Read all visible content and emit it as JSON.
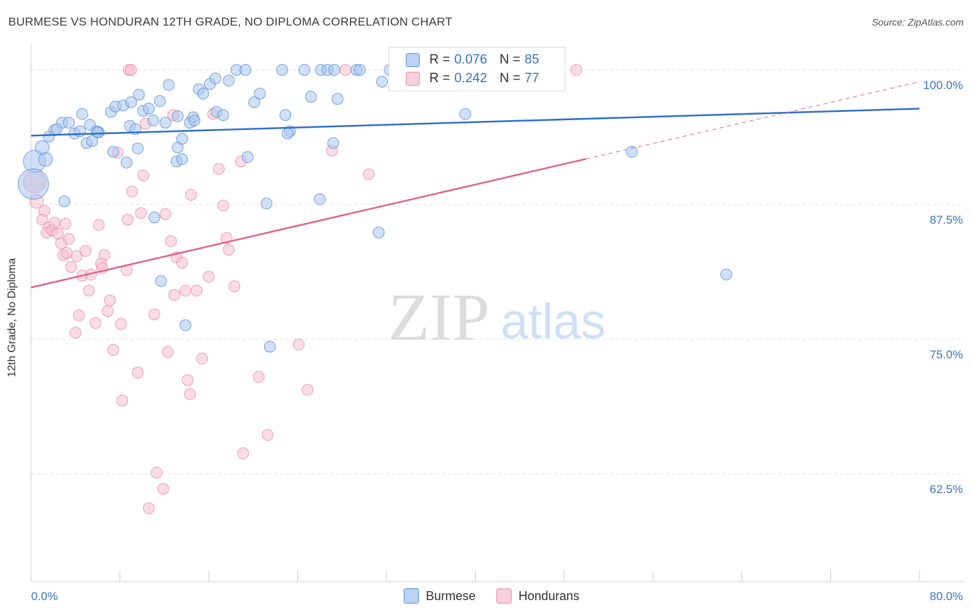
{
  "header": {
    "title": "BURMESE VS HONDURAN 12TH GRADE, NO DIPLOMA CORRELATION CHART",
    "source": "Source: ZipAtlas.com"
  },
  "watermark": {
    "zip": "ZIP",
    "atlas": "atlas"
  },
  "legend": {
    "burmese": {
      "r_label": "R =",
      "r_value": "0.076",
      "n_label": "N =",
      "n_value": "85"
    },
    "hondurans": {
      "r_label": "R =",
      "r_value": "0.242",
      "n_label": "N =",
      "n_value": "77"
    }
  },
  "colors": {
    "burmese_fill": "#a9c6ef",
    "burmese_stroke": "#5b8fd6",
    "burmese_line": "#2f6fcc",
    "hondurans_fill": "#f6bfd0",
    "hondurans_stroke": "#e98aa8",
    "hondurans_line": "#e0648f",
    "axis_text": "#3a74c4",
    "grid": "#e2e2e2"
  },
  "chart_data": {
    "type": "scatter",
    "title": "BURMESE VS HONDURAN 12TH GRADE, NO DIPLOMA CORRELATION CHART",
    "ylabel": "12th Grade, No Diploma",
    "xlabel": "",
    "xlim": [
      0,
      80
    ],
    "ylim": [
      52.5,
      102
    ],
    "x_tick_labels": [
      "0.0%",
      "80.0%"
    ],
    "y_ticks": [
      62.5,
      75.0,
      87.5,
      100.0
    ],
    "y_tick_labels": [
      "62.5%",
      "75.0%",
      "87.5%",
      "100.0%"
    ],
    "grid": true,
    "legend_position": "top-center",
    "series": [
      {
        "name": "Burmese",
        "r": 0.076,
        "n": 85,
        "trend": {
          "x": [
            0,
            80
          ],
          "y": [
            93.9,
            96.4
          ],
          "dashed_from": null
        },
        "points": [
          [
            0.3,
            91.5,
            16
          ],
          [
            0.2,
            89.4,
            22
          ],
          [
            1.3,
            91.7,
            10
          ],
          [
            1.0,
            92.8,
            10
          ],
          [
            1.6,
            93.8,
            8
          ],
          [
            2.1,
            94.4,
            8
          ],
          [
            2.8,
            95.1,
            8
          ],
          [
            3.4,
            95.1,
            8
          ],
          [
            4.6,
            95.9,
            8
          ],
          [
            2.3,
            94.5,
            8
          ],
          [
            3.9,
            94.1,
            8
          ],
          [
            4.4,
            94.3,
            8
          ],
          [
            5.3,
            94.9,
            8
          ],
          [
            6.1,
            94.2,
            8
          ],
          [
            5.0,
            93.2,
            8
          ],
          [
            5.5,
            93.4,
            8
          ],
          [
            7.2,
            96.1,
            8
          ],
          [
            7.6,
            96.6,
            8
          ],
          [
            8.3,
            96.7,
            8
          ],
          [
            8.9,
            94.8,
            8
          ],
          [
            9.0,
            97.0,
            8
          ],
          [
            9.6,
            92.7,
            8
          ],
          [
            10.1,
            96.2,
            8
          ],
          [
            10.6,
            96.4,
            8
          ],
          [
            11.0,
            95.3,
            8
          ],
          [
            11.6,
            97.1,
            8
          ],
          [
            12.1,
            95.1,
            8
          ],
          [
            12.4,
            98.6,
            8
          ],
          [
            13.2,
            92.8,
            8
          ],
          [
            13.6,
            93.6,
            8
          ],
          [
            14.3,
            95.1,
            8
          ],
          [
            14.6,
            95.6,
            8
          ],
          [
            15.1,
            98.2,
            8
          ],
          [
            15.5,
            97.8,
            8
          ],
          [
            16.1,
            98.7,
            8
          ],
          [
            16.7,
            96.1,
            8
          ],
          [
            17.3,
            95.8,
            8
          ],
          [
            17.8,
            99.0,
            8
          ],
          [
            18.5,
            100.0,
            8
          ],
          [
            19.3,
            100.0,
            8
          ],
          [
            20.1,
            97.0,
            8
          ],
          [
            20.6,
            97.8,
            8
          ],
          [
            22.6,
            100.0,
            8
          ],
          [
            22.9,
            95.8,
            8
          ],
          [
            24.6,
            100.0,
            8
          ],
          [
            25.2,
            97.5,
            8
          ],
          [
            26.1,
            100.0,
            8
          ],
          [
            26.7,
            100.0,
            8
          ],
          [
            27.3,
            100.0,
            8
          ],
          [
            27.6,
            97.3,
            8
          ],
          [
            29.3,
            100.0,
            8
          ],
          [
            29.6,
            100.0,
            8
          ],
          [
            31.6,
            98.9,
            8
          ],
          [
            32.3,
            100.0,
            8
          ],
          [
            38.1,
            100.0,
            8
          ],
          [
            38.8,
            99.0,
            8
          ],
          [
            40.1,
            100.0,
            8
          ],
          [
            5.9,
            94.3,
            8
          ],
          [
            7.4,
            92.4,
            8
          ],
          [
            8.6,
            91.4,
            8
          ],
          [
            11.1,
            86.3,
            8
          ],
          [
            13.1,
            91.5,
            8
          ],
          [
            16.6,
            99.2,
            8
          ],
          [
            13.6,
            91.7,
            8
          ],
          [
            14.7,
            95.3,
            8
          ],
          [
            9.4,
            94.5,
            8
          ],
          [
            3.0,
            87.8,
            8
          ],
          [
            23.3,
            94.3,
            8
          ],
          [
            27.2,
            93.2,
            8
          ],
          [
            11.7,
            80.4,
            8
          ],
          [
            13.9,
            76.3,
            8
          ],
          [
            21.2,
            87.6,
            8
          ],
          [
            26.0,
            88.0,
            8
          ],
          [
            31.3,
            84.9,
            8
          ],
          [
            33.6,
            100.0,
            8
          ],
          [
            36.3,
            100.0,
            8
          ],
          [
            39.1,
            95.9,
            8
          ],
          [
            54.1,
            92.4,
            8
          ],
          [
            62.6,
            81.0,
            8
          ],
          [
            21.5,
            74.3,
            8
          ],
          [
            19.5,
            91.9,
            8
          ],
          [
            23.1,
            94.1,
            8
          ],
          [
            13.2,
            95.7,
            8
          ],
          [
            9.7,
            97.7,
            8
          ],
          [
            6.0,
            94.2,
            8
          ]
        ]
      },
      {
        "name": "Hondurans",
        "r": 0.242,
        "n": 77,
        "trend": {
          "x": [
            0,
            80
          ],
          "y": [
            79.8,
            98.9
          ],
          "dashed_from": 50
        },
        "points": [
          [
            0.3,
            89.6,
            16
          ],
          [
            0.5,
            87.8,
            10
          ],
          [
            1.2,
            86.9,
            8
          ],
          [
            1.0,
            86.1,
            8
          ],
          [
            1.6,
            85.4,
            8
          ],
          [
            1.4,
            84.9,
            8
          ],
          [
            1.9,
            85.1,
            8
          ],
          [
            2.4,
            84.8,
            8
          ],
          [
            2.7,
            83.9,
            8
          ],
          [
            3.1,
            85.7,
            8
          ],
          [
            3.4,
            84.3,
            8
          ],
          [
            2.9,
            82.8,
            8
          ],
          [
            3.6,
            81.7,
            8
          ],
          [
            4.1,
            82.7,
            8
          ],
          [
            4.6,
            80.9,
            8
          ],
          [
            4.9,
            83.2,
            8
          ],
          [
            5.2,
            79.5,
            8
          ],
          [
            5.8,
            76.5,
            8
          ],
          [
            4.3,
            77.2,
            8
          ],
          [
            6.1,
            85.6,
            8
          ],
          [
            6.6,
            82.8,
            8
          ],
          [
            6.9,
            77.6,
            8
          ],
          [
            7.1,
            78.6,
            8
          ],
          [
            7.4,
            74.0,
            8
          ],
          [
            7.8,
            92.3,
            8
          ],
          [
            8.1,
            76.4,
            8
          ],
          [
            8.6,
            81.4,
            8
          ],
          [
            8.7,
            86.1,
            8
          ],
          [
            9.1,
            88.7,
            8
          ],
          [
            9.6,
            71.9,
            8
          ],
          [
            9.9,
            86.7,
            8
          ],
          [
            10.1,
            90.2,
            8
          ],
          [
            10.3,
            95.0,
            8
          ],
          [
            10.6,
            59.3,
            8
          ],
          [
            11.1,
            77.3,
            8
          ],
          [
            11.3,
            62.6,
            8
          ],
          [
            11.9,
            61.1,
            8
          ],
          [
            12.1,
            86.6,
            8
          ],
          [
            12.3,
            73.8,
            8
          ],
          [
            12.6,
            84.1,
            8
          ],
          [
            12.9,
            79.1,
            8
          ],
          [
            13.1,
            82.6,
            8
          ],
          [
            13.6,
            82.1,
            8
          ],
          [
            13.9,
            79.5,
            8
          ],
          [
            14.1,
            71.2,
            8
          ],
          [
            14.4,
            88.4,
            8
          ],
          [
            14.9,
            79.5,
            8
          ],
          [
            15.4,
            73.2,
            8
          ],
          [
            16.0,
            80.8,
            8
          ],
          [
            16.4,
            95.9,
            8
          ],
          [
            16.9,
            90.8,
            8
          ],
          [
            17.3,
            87.4,
            8
          ],
          [
            17.8,
            83.3,
            8
          ],
          [
            17.6,
            84.4,
            8
          ],
          [
            18.3,
            79.9,
            8
          ],
          [
            18.9,
            91.5,
            8
          ],
          [
            19.1,
            64.4,
            8
          ],
          [
            20.5,
            71.5,
            8
          ],
          [
            21.3,
            66.1,
            8
          ],
          [
            24.1,
            74.5,
            8
          ],
          [
            24.9,
            70.3,
            8
          ],
          [
            27.1,
            92.5,
            8
          ],
          [
            28.3,
            100.0,
            8
          ],
          [
            30.4,
            90.3,
            8
          ],
          [
            40.6,
            100.0,
            8
          ],
          [
            49.1,
            100.0,
            8
          ],
          [
            8.8,
            100.0,
            8
          ],
          [
            14.3,
            69.9,
            8
          ],
          [
            9.0,
            100.0,
            8
          ],
          [
            6.3,
            82.0,
            8
          ],
          [
            4.0,
            75.6,
            8
          ],
          [
            3.2,
            83.0,
            8
          ],
          [
            8.2,
            69.3,
            8
          ],
          [
            6.4,
            81.6,
            8
          ],
          [
            2.1,
            85.8,
            8
          ],
          [
            5.4,
            81.0,
            8
          ],
          [
            12.8,
            95.8,
            8
          ]
        ]
      }
    ]
  }
}
